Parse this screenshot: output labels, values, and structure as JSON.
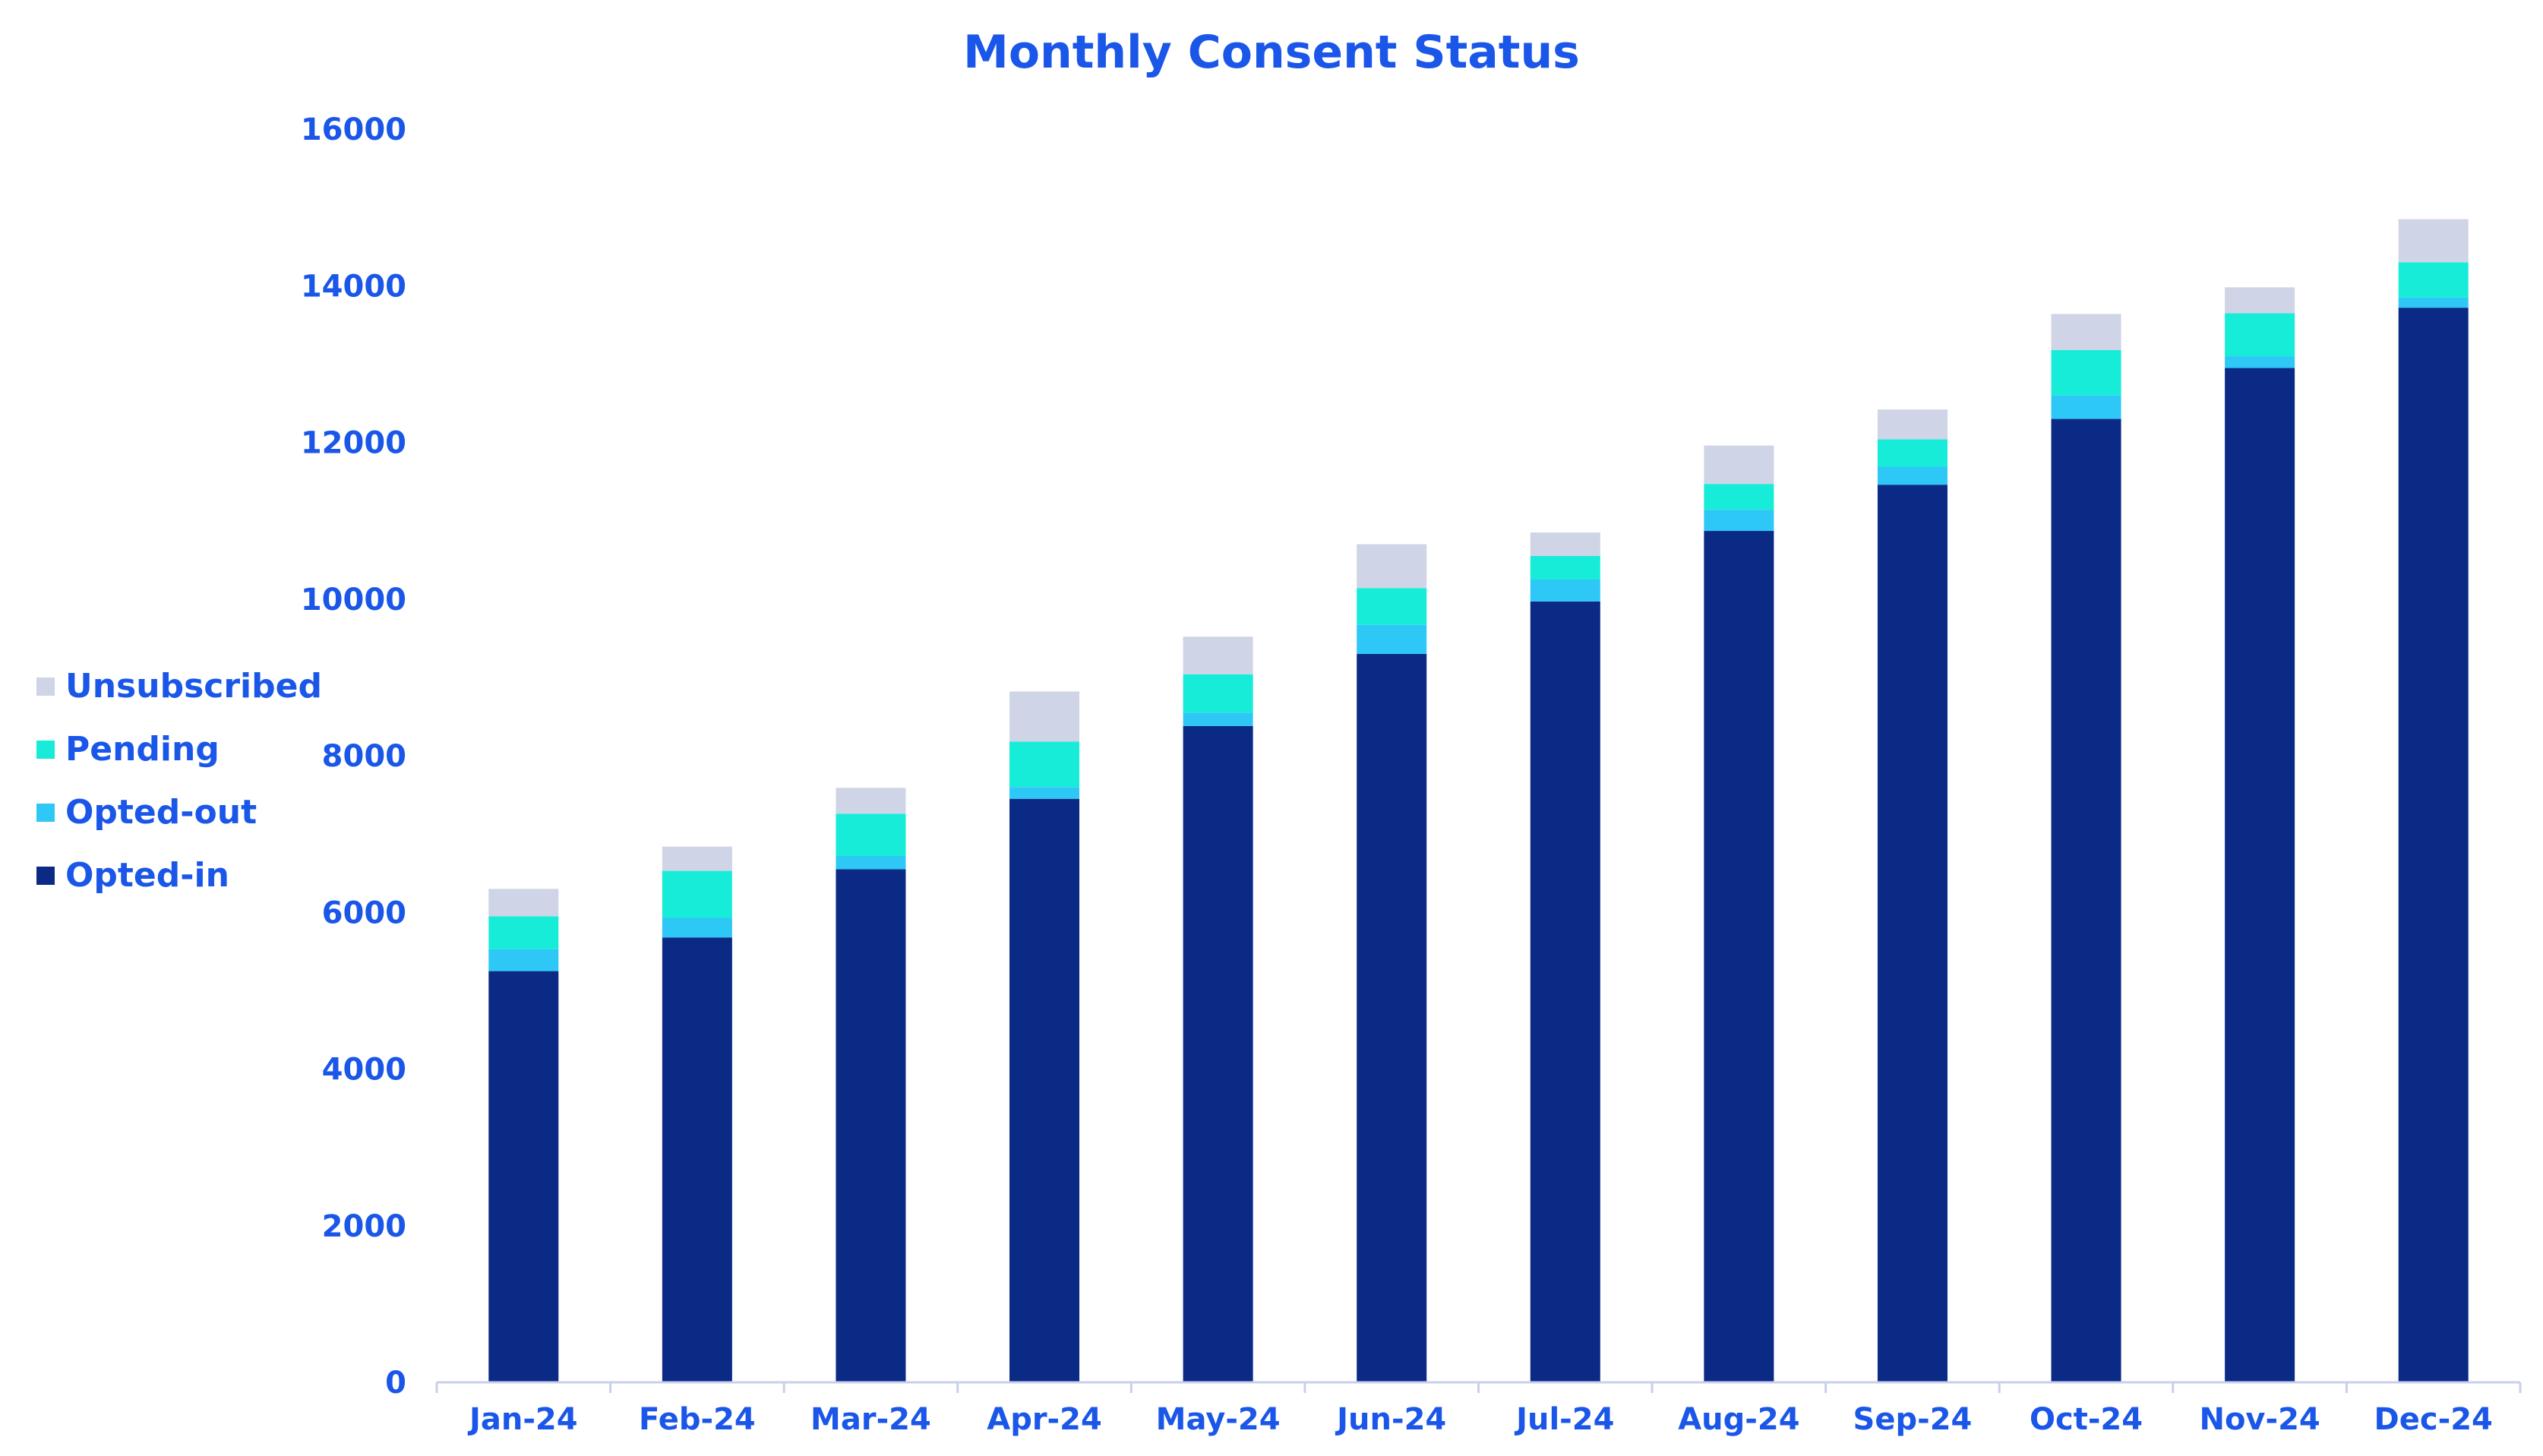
{
  "chart_data": {
    "type": "bar",
    "stacked": true,
    "title": "Monthly Consent Status",
    "xlabel": "",
    "ylabel": "",
    "ylim": [
      0,
      16000
    ],
    "yticks": [
      "0",
      "2000",
      "4000",
      "6000",
      "8000",
      "10000",
      "12000",
      "14000",
      "16000"
    ],
    "grid": false,
    "legend_position": "left",
    "categories": [
      "Jan-24",
      "Feb-24",
      "Mar-24",
      "Apr-24",
      "May-24",
      "Jun-24",
      "Jul-24",
      "Aug-24",
      "Sep-24",
      "Oct-24",
      "Nov-24",
      "Dec-24"
    ],
    "series": [
      {
        "name": "Opted-in",
        "color": "#0a2a85",
        "values": [
          5250,
          5680,
          6550,
          7450,
          8380,
          9300,
          9970,
          10870,
          11460,
          12300,
          12950,
          13720
        ]
      },
      {
        "name": "Opted-out",
        "color": "#2dc8f5",
        "values": [
          280,
          250,
          170,
          150,
          170,
          370,
          280,
          270,
          230,
          300,
          150,
          130
        ]
      },
      {
        "name": "Pending",
        "color": "#17ecd9",
        "values": [
          420,
          600,
          540,
          580,
          490,
          470,
          300,
          330,
          350,
          580,
          550,
          450
        ]
      },
      {
        "name": "Unsubscribed",
        "color": "#cfd4e6",
        "values": [
          350,
          310,
          330,
          640,
          480,
          560,
          300,
          490,
          380,
          460,
          330,
          550
        ]
      }
    ],
    "legend_order": [
      "Unsubscribed",
      "Pending",
      "Opted-out",
      "Opted-in"
    ],
    "axis_color": "#c8d0ea",
    "text_color": "#1a56e8"
  }
}
